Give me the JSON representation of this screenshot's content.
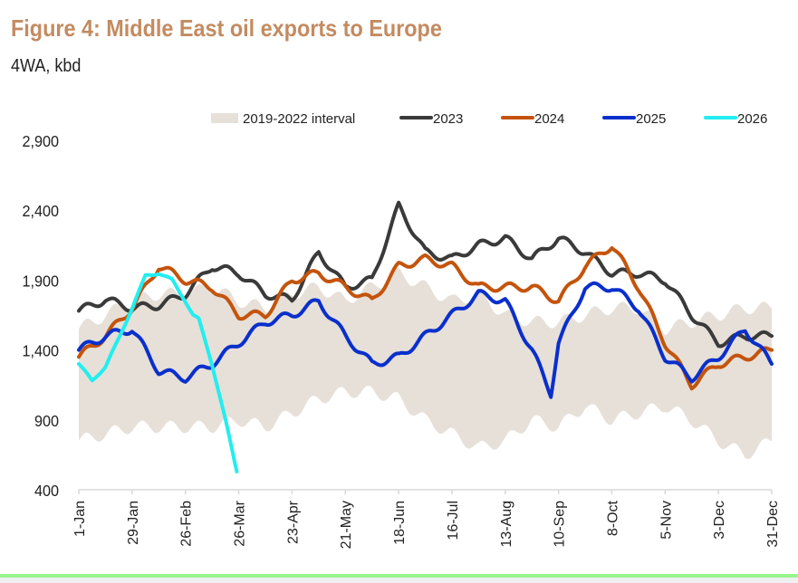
{
  "chart_data": {
    "type": "line",
    "title": "Figure 4: Middle East oil exports to Europe",
    "subtitle": "4WA, kbd",
    "ylim": [
      400,
      2900
    ],
    "yticks": [
      400,
      900,
      1400,
      1900,
      2400,
      2900
    ],
    "ytick_labels": [
      "400",
      "900",
      "1,400",
      "1,900",
      "2,400",
      "2,900"
    ],
    "xticks": [
      "1-Jan",
      "29-Jan",
      "26-Feb",
      "26-Mar",
      "23-Apr",
      "21-May",
      "18-Jun",
      "16-Jul",
      "13-Aug",
      "10-Sep",
      "8-Oct",
      "5-Nov",
      "3-Dec",
      "31-Dec"
    ],
    "xtick_days": [
      0,
      28,
      56,
      84,
      112,
      140,
      168,
      196,
      224,
      252,
      280,
      308,
      336,
      364
    ],
    "legend_position": "top",
    "grid": false,
    "band": {
      "name": "2019-2022 interval",
      "color": "#e6e0d8",
      "x_days": [
        0,
        14,
        28,
        42,
        56,
        70,
        84,
        98,
        112,
        126,
        140,
        154,
        168,
        182,
        196,
        210,
        224,
        238,
        252,
        266,
        280,
        294,
        308,
        322,
        336,
        350,
        364
      ],
      "upper": [
        1550,
        1650,
        1750,
        1800,
        1800,
        1850,
        1750,
        1700,
        1800,
        1850,
        1750,
        1850,
        1950,
        1850,
        1750,
        1800,
        1650,
        1600,
        1600,
        1650,
        1700,
        1700,
        1550,
        1600,
        1650,
        1700,
        1700
      ],
      "lower": [
        750,
        800,
        850,
        850,
        850,
        850,
        900,
        850,
        950,
        1050,
        1100,
        1100,
        1050,
        900,
        800,
        700,
        750,
        900,
        850,
        1000,
        900,
        950,
        1000,
        900,
        750,
        650,
        750
      ]
    },
    "series": [
      {
        "name": "2023",
        "color": "#3a3a3a",
        "x_days": [
          0,
          14,
          28,
          42,
          56,
          70,
          84,
          98,
          112,
          126,
          140,
          154,
          168,
          182,
          196,
          210,
          224,
          238,
          252,
          266,
          280,
          294,
          308,
          322,
          336,
          350,
          364
        ],
        "values": [
          1680,
          1760,
          1700,
          1720,
          1800,
          2000,
          1950,
          1800,
          1760,
          2100,
          1850,
          1900,
          2430,
          2100,
          2050,
          2150,
          2200,
          2050,
          2200,
          2100,
          1950,
          1950,
          1900,
          1650,
          1450,
          1500,
          1500
        ]
      },
      {
        "name": "2024",
        "color": "#c4540c",
        "x_days": [
          0,
          14,
          28,
          42,
          56,
          70,
          84,
          98,
          112,
          126,
          140,
          154,
          168,
          182,
          196,
          210,
          224,
          238,
          252,
          266,
          280,
          294,
          308,
          322,
          336,
          350,
          364
        ],
        "values": [
          1350,
          1500,
          1700,
          2000,
          1900,
          1850,
          1650,
          1650,
          1900,
          1950,
          1850,
          1750,
          2000,
          2050,
          2000,
          1850,
          1850,
          1850,
          1750,
          2000,
          2150,
          1850,
          1450,
          1150,
          1300,
          1350,
          1400
        ]
      },
      {
        "name": "2025",
        "color": "#0a2fcc",
        "x_days": [
          0,
          14,
          28,
          42,
          56,
          70,
          84,
          98,
          112,
          126,
          140,
          154,
          168,
          182,
          196,
          210,
          224,
          238,
          248,
          252,
          266,
          280,
          294,
          308,
          322,
          336,
          350,
          364
        ],
        "values": [
          1400,
          1500,
          1550,
          1250,
          1200,
          1300,
          1450,
          1600,
          1650,
          1750,
          1500,
          1300,
          1350,
          1500,
          1650,
          1800,
          1750,
          1400,
          1090,
          1450,
          1850,
          1850,
          1700,
          1350,
          1200,
          1350,
          1550,
          1300
        ]
      },
      {
        "name": "2026",
        "color": "#22eef0",
        "x_days": [
          0,
          7,
          14,
          21,
          28,
          35,
          42,
          49,
          56,
          60,
          63,
          70,
          77,
          83
        ],
        "values": [
          1300,
          1180,
          1280,
          1480,
          1700,
          1930,
          1950,
          1900,
          1750,
          1650,
          1620,
          1300,
          900,
          530
        ]
      }
    ]
  }
}
